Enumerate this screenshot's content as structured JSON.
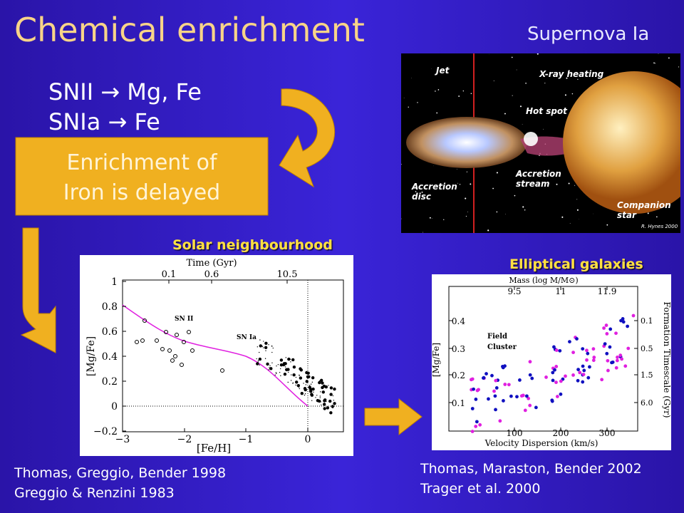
{
  "title": "Chemical enrichment",
  "subtitle": "Supernova Ia",
  "reactions": [
    "SNII → Mg, Fe",
    "SNIa → Fe"
  ],
  "box": [
    "Enrichment of",
    "Iron is delayed"
  ],
  "supernova_image": {
    "labels": [
      "Jet",
      "X-ray heating",
      "Hot spot",
      "Accretion",
      "stream",
      "Accretion",
      "disc",
      "Companion",
      "star"
    ],
    "credit": "R. Hynes 2000"
  },
  "left_plot": {
    "caption": "Solar neighbourhood",
    "top_label": "Time (Gyr)",
    "top_ticks": [
      "0.1",
      "0.6",
      "10.5"
    ],
    "y_label": "[Mg/Fe]",
    "y_ticks": [
      "1",
      "0.8",
      "0.6",
      "0.4",
      "0.2",
      "0",
      "−0.2"
    ],
    "x_label": "[Fe/H]",
    "x_ticks": [
      "−3",
      "−2",
      "−1",
      "0"
    ],
    "annotations": [
      "SN II",
      "SN Ia"
    ]
  },
  "right_plot": {
    "caption": "Elliptical galaxies",
    "top_label": "Mass (log M/M⊙)",
    "top_ticks": [
      "9.5",
      "11",
      "11.9"
    ],
    "y_label": "[Mg/Fe]",
    "y_ticks": [
      "0.4",
      "0.3",
      "0.2",
      "0.1"
    ],
    "x_label": "Velocity Dispersion (km/s)",
    "x_ticks": [
      "100",
      "200",
      "300"
    ],
    "y2_label": "Formation Timescale (Gyr)",
    "y2_ticks": [
      "0.1",
      "0.5",
      "1.5",
      "6.0"
    ],
    "legend": [
      "Field",
      "Cluster"
    ]
  },
  "citations_left": [
    "Thomas, Greggio, Bender 1998",
    "Greggio & Renzini 1983"
  ],
  "citations_right": [
    "Thomas, Maraston, Bender 2002",
    "Trager et al. 2000"
  ]
}
